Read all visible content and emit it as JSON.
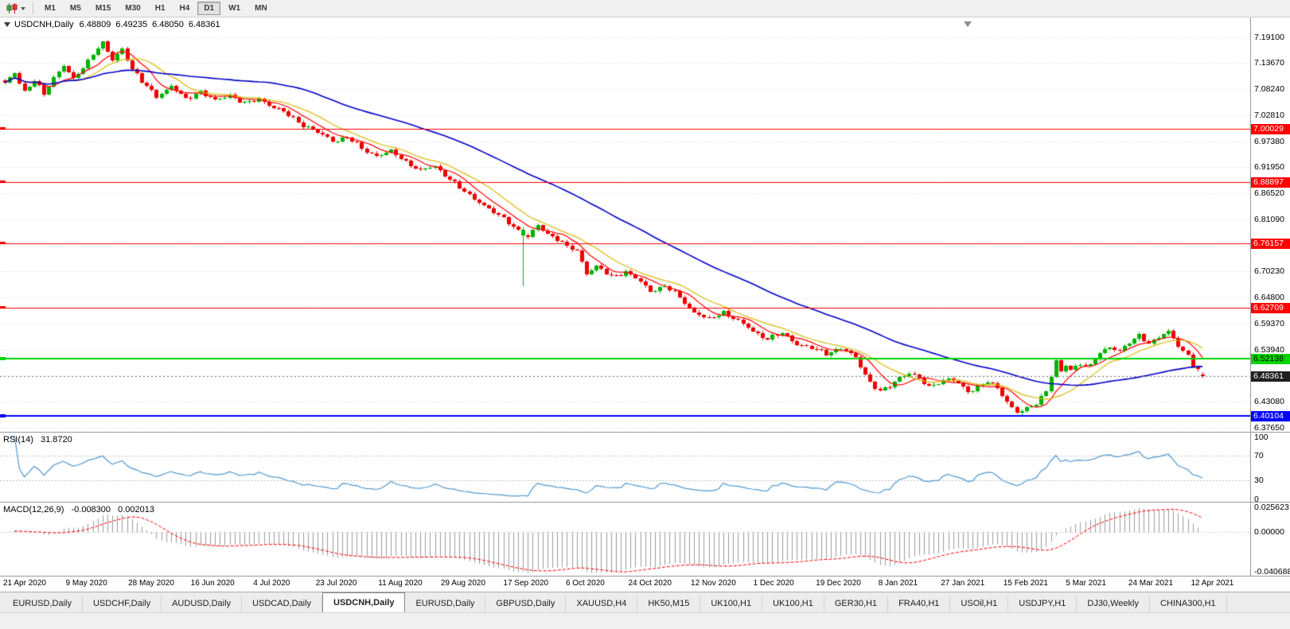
{
  "toolbar": {
    "timeframes": [
      "M1",
      "M5",
      "M15",
      "M30",
      "H1",
      "H4",
      "D1",
      "W1",
      "MN"
    ],
    "active_timeframe": "D1"
  },
  "chart": {
    "header": {
      "symbol": "USDCNH,Daily",
      "open": "6.48809",
      "high": "6.49235",
      "low": "6.48050",
      "close": "6.48361"
    }
  },
  "indicators": {
    "rsi": {
      "label": "RSI(14)",
      "value": "31.8720",
      "period": 14,
      "levels": [
        70,
        30
      ],
      "range": [
        0,
        100
      ],
      "scale_labels": [
        "100",
        "70",
        "30",
        "0"
      ],
      "color": "#4f97d0",
      "level_color": "#c0c0c0"
    },
    "macd": {
      "label": "MACD(12,26,9)",
      "value_main": "-0.008300",
      "value_signal": "0.002013",
      "fast": 12,
      "slow": 26,
      "signal": 9,
      "range": [
        -0.040688,
        0.025623
      ],
      "scale_labels": [
        "0.025623",
        "0.00000",
        "-0.040688"
      ],
      "histogram_color": "#9b9b9b",
      "signal_color": "#ff0000"
    }
  },
  "tabs": {
    "items": [
      "EURUSD,Daily",
      "USDCHF,Daily",
      "AUDUSD,Daily",
      "USDCAD,Daily",
      "USDCNH,Daily",
      "EURUSD,Daily",
      "GBPUSD,Daily",
      "XAUUSD,H4",
      "HK50,M15",
      "UK100,H1",
      "UK100,H1",
      "GER30,H1",
      "FRA40,H1",
      "USOil,H1",
      "USDJPY,H1",
      "DJ30,Weekly",
      "CHINA300,H1"
    ],
    "active_index": 4
  },
  "chart_data": {
    "type": "candlestick",
    "title": "USDCNH,Daily",
    "x_labels": [
      "21 Apr 2020",
      "9 May 2020",
      "28 May 2020",
      "16 Jun 2020",
      "4 Jul 2020",
      "23 Jul 2020",
      "11 Aug 2020",
      "29 Aug 2020",
      "17 Sep 2020",
      "6 Oct 2020",
      "24 Oct 2020",
      "12 Nov 2020",
      "1 Dec 2020",
      "19 Dec 2020",
      "8 Jan 2021",
      "27 Jan 2021",
      "15 Feb 2021",
      "5 Mar 2021",
      "24 Mar 2021",
      "12 Apr 2021"
    ],
    "y_axis_ticks": [
      "7.19100",
      "7.13670",
      "7.08240",
      "7.02810",
      "6.97380",
      "6.91950",
      "6.86520",
      "6.81090",
      "6.75660",
      "6.70230",
      "6.64800",
      "6.59370",
      "6.53940",
      "6.48510",
      "6.43080",
      "6.37650"
    ],
    "visible_price_range": [
      6.368,
      7.232
    ],
    "bars_total": 246,
    "close_anchors": [
      [
        0,
        7.093
      ],
      [
        2,
        7.118
      ],
      [
        4,
        7.078
      ],
      [
        6,
        7.1
      ],
      [
        8,
        7.072
      ],
      [
        10,
        7.108
      ],
      [
        12,
        7.132
      ],
      [
        14,
        7.102
      ],
      [
        16,
        7.128
      ],
      [
        18,
        7.158
      ],
      [
        20,
        7.178
      ],
      [
        22,
        7.142
      ],
      [
        24,
        7.168
      ],
      [
        26,
        7.125
      ],
      [
        28,
        7.098
      ],
      [
        31,
        7.068
      ],
      [
        34,
        7.088
      ],
      [
        37,
        7.062
      ],
      [
        40,
        7.078
      ],
      [
        43,
        7.058
      ],
      [
        46,
        7.072
      ],
      [
        49,
        7.052
      ],
      [
        52,
        7.062
      ],
      [
        55,
        7.045
      ],
      [
        58,
        7.028
      ],
      [
        61,
        7.008
      ],
      [
        64,
        6.992
      ],
      [
        67,
        6.975
      ],
      [
        70,
        6.982
      ],
      [
        73,
        6.958
      ],
      [
        76,
        6.945
      ],
      [
        79,
        6.952
      ],
      [
        82,
        6.932
      ],
      [
        85,
        6.912
      ],
      [
        88,
        6.922
      ],
      [
        91,
        6.895
      ],
      [
        94,
        6.868
      ],
      [
        97,
        6.848
      ],
      [
        100,
        6.825
      ],
      [
        103,
        6.805
      ],
      [
        105,
        6.788
      ],
      [
        107,
        6.772
      ],
      [
        109,
        6.798
      ],
      [
        111,
        6.782
      ],
      [
        113,
        6.77
      ],
      [
        115,
        6.752
      ],
      [
        117,
        6.746
      ],
      [
        119,
        6.7
      ],
      [
        121,
        6.712
      ],
      [
        124,
        6.692
      ],
      [
        127,
        6.702
      ],
      [
        129,
        6.688
      ],
      [
        132,
        6.662
      ],
      [
        135,
        6.672
      ],
      [
        138,
        6.648
      ],
      [
        141,
        6.618
      ],
      [
        144,
        6.602
      ],
      [
        147,
        6.618
      ],
      [
        150,
        6.598
      ],
      [
        153,
        6.578
      ],
      [
        156,
        6.562
      ],
      [
        159,
        6.572
      ],
      [
        162,
        6.552
      ],
      [
        165,
        6.542
      ],
      [
        168,
        6.532
      ],
      [
        171,
        6.542
      ],
      [
        174,
        6.522
      ],
      [
        177,
        6.472
      ],
      [
        179,
        6.452
      ],
      [
        181,
        6.462
      ],
      [
        183,
        6.482
      ],
      [
        185,
        6.492
      ],
      [
        187,
        6.478
      ],
      [
        189,
        6.462
      ],
      [
        191,
        6.472
      ],
      [
        193,
        6.478
      ],
      [
        195,
        6.468
      ],
      [
        197,
        6.452
      ],
      [
        199,
        6.462
      ],
      [
        201,
        6.472
      ],
      [
        203,
        6.458
      ],
      [
        205,
        6.432
      ],
      [
        207,
        6.408
      ],
      [
        209,
        6.414
      ],
      [
        211,
        6.428
      ],
      [
        213,
        6.455
      ],
      [
        215,
        6.515
      ],
      [
        216,
        6.492
      ],
      [
        217,
        6.505
      ],
      [
        218,
        6.498
      ],
      [
        220,
        6.512
      ],
      [
        222,
        6.505
      ],
      [
        224,
        6.532
      ],
      [
        226,
        6.545
      ],
      [
        228,
        6.538
      ],
      [
        230,
        6.552
      ],
      [
        232,
        6.568
      ],
      [
        234,
        6.555
      ],
      [
        236,
        6.565
      ],
      [
        238,
        6.576
      ],
      [
        240,
        6.548
      ],
      [
        242,
        6.528
      ],
      [
        243,
        6.508
      ],
      [
        244,
        6.496
      ],
      [
        245,
        6.48361
      ]
    ],
    "special_bars": [
      {
        "bar": 106,
        "o": 6.778,
        "h": 6.795,
        "l": 6.672,
        "c": 6.79
      }
    ],
    "last_bar": {
      "o": 6.48809,
      "h": 6.49235,
      "l": 6.4805,
      "c": 6.48361
    },
    "horizontal_lines": [
      {
        "price": 7.00029,
        "label": "7.00029",
        "color": "#ff0000",
        "text_color": "#ffffff",
        "width": 1
      },
      {
        "price": 6.88897,
        "label": "6.88897",
        "color": "#ff0000",
        "text_color": "#ffffff",
        "width": 1
      },
      {
        "price": 6.76157,
        "label": "6.76157",
        "color": "#ff0000",
        "text_color": "#ffffff",
        "width": 1
      },
      {
        "price": 6.62709,
        "label": "6.62709",
        "color": "#ff0000",
        "text_color": "#ffffff",
        "width": 1
      },
      {
        "price": 6.52138,
        "label": "6.52138",
        "color": "#00d500",
        "text_color": "#000000",
        "width": 2
      },
      {
        "price": 6.40104,
        "label": "6.40104",
        "color": "#0000ff",
        "text_color": "#ffffff",
        "width": 2
      }
    ],
    "current_price": {
      "price": 6.48361,
      "label": "6.48361",
      "bg": "#1f1f1f",
      "text_color": "#ffffff"
    },
    "candle_up_color": "#00b300",
    "candle_down_color": "#ee0000",
    "grid_color": "#dadada",
    "moving_averages": [
      {
        "name": "fast",
        "period": 7,
        "color": "#ff0000"
      },
      {
        "name": "mid",
        "period": 13,
        "color": "#d8ba00"
      },
      {
        "name": "slow",
        "period": 45,
        "color": "#0000c8"
      }
    ]
  }
}
